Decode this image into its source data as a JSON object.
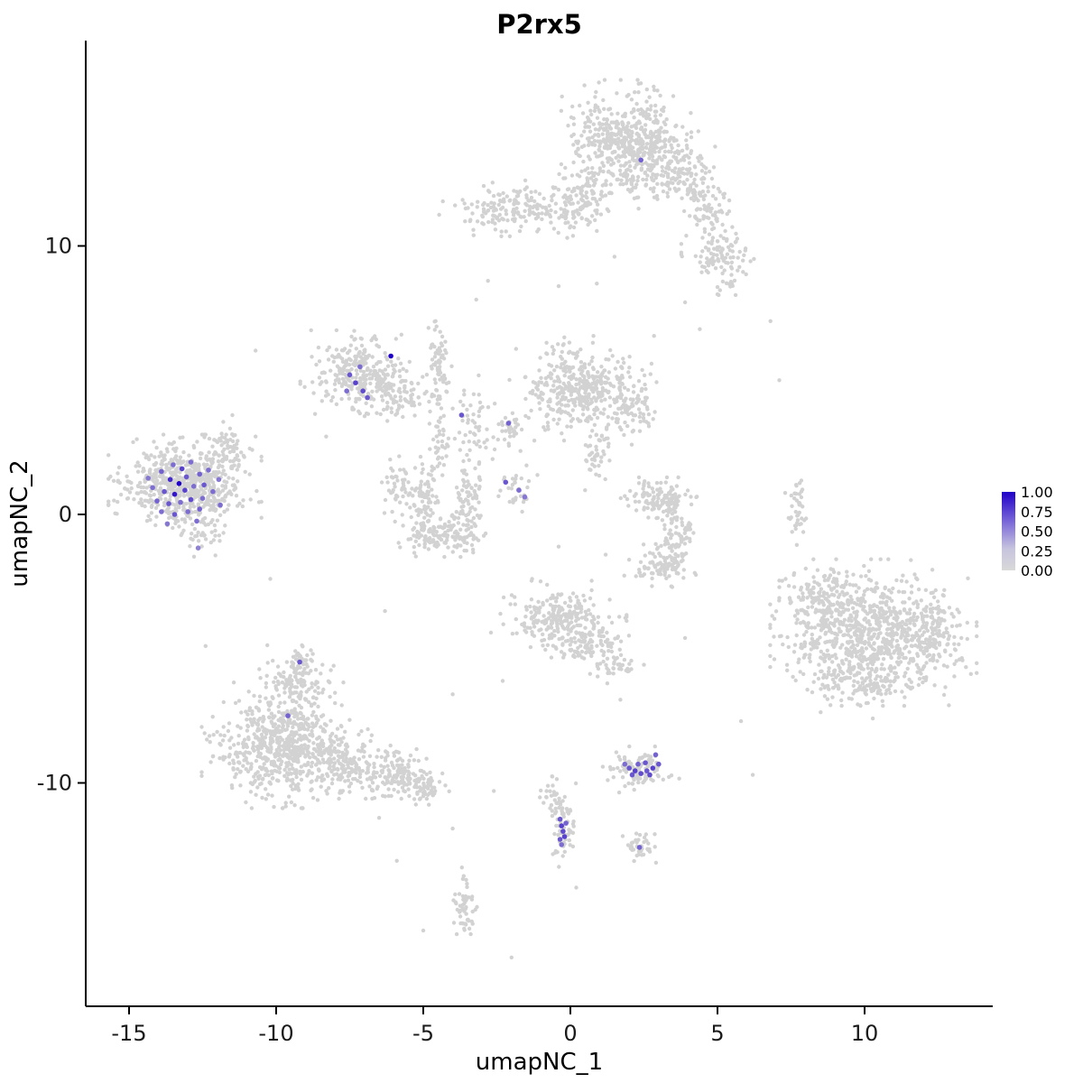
{
  "chart_data": {
    "type": "scatter",
    "title": "P2rx5",
    "xlabel": "umapNC_1",
    "ylabel": "umapNC_2",
    "xlim": [
      -16.5,
      14.4
    ],
    "ylim": [
      -18.3,
      17.6
    ],
    "x_ticks": [
      -15,
      -10,
      -5,
      0,
      5,
      10
    ],
    "y_ticks": [
      10,
      0,
      -10
    ],
    "grid": false,
    "legend": {
      "position": "right",
      "tick_labels": [
        "1.00",
        "0.75",
        "0.50",
        "0.25",
        "0.00"
      ],
      "low_color": "#d9d9d9",
      "high_color": "#2000c8",
      "mid_color": "#7a68d8"
    },
    "point_color_zero": "#d2d2d2",
    "seed": 7,
    "clusters_format": [
      "cx",
      "cy",
      "sx",
      "sy",
      "count"
    ],
    "clusters": [
      [
        1.9,
        14.1,
        0.85,
        0.8,
        420
      ],
      [
        2.9,
        13.3,
        0.6,
        0.6,
        150
      ],
      [
        1.6,
        12.5,
        1.0,
        0.45,
        90
      ],
      [
        4.2,
        12.4,
        0.4,
        0.5,
        70
      ],
      [
        4.7,
        11.2,
        0.35,
        0.45,
        50
      ],
      [
        5.2,
        9.6,
        0.55,
        0.55,
        110
      ],
      [
        -1.6,
        11.4,
        1.1,
        0.4,
        200
      ],
      [
        0.3,
        11.6,
        0.45,
        0.5,
        70
      ],
      [
        -7.1,
        5.3,
        0.8,
        0.6,
        280
      ],
      [
        -5.9,
        4.4,
        0.5,
        0.4,
        80
      ],
      [
        -4.5,
        5.4,
        0.18,
        1.1,
        80
      ],
      [
        -3.3,
        3.1,
        0.3,
        0.8,
        55
      ],
      [
        -4.4,
        2.4,
        0.15,
        0.5,
        30
      ],
      [
        0.4,
        4.7,
        0.95,
        0.75,
        400
      ],
      [
        2.1,
        3.9,
        0.4,
        0.5,
        70
      ],
      [
        0.9,
        2.5,
        0.25,
        0.6,
        45
      ],
      [
        -2.1,
        3.1,
        0.2,
        0.4,
        35
      ],
      [
        -1.9,
        1.0,
        0.3,
        0.35,
        30
      ],
      [
        -5.0,
        0.6,
        0.28,
        0.8,
        90
      ],
      [
        -4.4,
        -0.75,
        0.6,
        0.32,
        130
      ],
      [
        -3.5,
        0.4,
        0.25,
        0.7,
        80
      ],
      [
        -5.9,
        1.1,
        0.25,
        0.5,
        40
      ],
      [
        -13.1,
        1.1,
        1.0,
        0.72,
        650
      ],
      [
        -11.6,
        2.3,
        0.3,
        0.55,
        60
      ],
      [
        -12.4,
        -0.9,
        0.4,
        0.3,
        25
      ],
      [
        3.0,
        0.6,
        0.55,
        0.3,
        100
      ],
      [
        3.6,
        -0.7,
        0.3,
        0.8,
        120
      ],
      [
        3.0,
        -1.9,
        0.45,
        0.3,
        70
      ],
      [
        7.7,
        0.2,
        0.12,
        0.6,
        40
      ],
      [
        10.3,
        -4.4,
        1.35,
        1.05,
        800
      ],
      [
        8.4,
        -3.3,
        0.5,
        0.6,
        120
      ],
      [
        12.3,
        -4.3,
        0.5,
        0.6,
        120
      ],
      [
        10.0,
        -6.3,
        0.8,
        0.5,
        120
      ],
      [
        -0.3,
        -3.9,
        0.85,
        0.55,
        260
      ],
      [
        0.8,
        -4.9,
        0.5,
        0.4,
        80
      ],
      [
        1.6,
        -5.7,
        0.3,
        0.25,
        30
      ],
      [
        -9.8,
        -8.6,
        1.05,
        0.9,
        650
      ],
      [
        -7.4,
        -9.3,
        0.85,
        0.5,
        180
      ],
      [
        -5.8,
        -9.8,
        0.55,
        0.4,
        110
      ],
      [
        -4.9,
        -10.2,
        0.3,
        0.25,
        40
      ],
      [
        -9.3,
        -6.3,
        0.5,
        0.55,
        130
      ],
      [
        -9.15,
        -5.5,
        0.2,
        0.25,
        30
      ],
      [
        2.4,
        -9.5,
        0.5,
        0.33,
        100
      ],
      [
        -0.25,
        -11.6,
        0.18,
        0.7,
        60
      ],
      [
        -0.6,
        -10.4,
        0.18,
        0.4,
        25
      ],
      [
        2.3,
        -12.4,
        0.28,
        0.22,
        40
      ],
      [
        -3.6,
        -14.6,
        0.18,
        0.65,
        55
      ]
    ],
    "sparse_points": [
      [
        -10.7,
        2.9
      ],
      [
        -3.2,
        8.0
      ],
      [
        6.8,
        7.2
      ],
      [
        -0.4,
        8.5
      ],
      [
        0.9,
        8.6
      ],
      [
        3.9,
        7.9
      ],
      [
        5.0,
        8.2
      ],
      [
        7.3,
        0.8
      ],
      [
        -10.7,
        6.1
      ],
      [
        -10.2,
        -2.4
      ],
      [
        -12.4,
        -4.9
      ],
      [
        -5.9,
        -12.9
      ],
      [
        -5.0,
        -15.5
      ],
      [
        -2.0,
        -16.5
      ],
      [
        0.2,
        -13.9
      ],
      [
        1.7,
        -6.9
      ],
      [
        2.5,
        -5.6
      ],
      [
        5.8,
        -7.7
      ],
      [
        6.2,
        -9.7
      ],
      [
        7.1,
        5.0
      ],
      [
        -0.4,
        -1.2
      ],
      [
        -1.3,
        -2.4
      ],
      [
        3.9,
        -4.6
      ],
      [
        -2.6,
        -10.3
      ],
      [
        -4.0,
        -11.7
      ],
      [
        -6.5,
        -11.3
      ],
      [
        -2.7,
        -4.4
      ],
      [
        -4.0,
        -6.7
      ],
      [
        -2.3,
        -6.2
      ],
      [
        -2.8,
        8.7
      ],
      [
        1.5,
        9.6
      ],
      [
        4.4,
        6.9
      ],
      [
        -8.3,
        2.9
      ],
      [
        -6.3,
        -3.6
      ],
      [
        0.5,
        0.9
      ],
      [
        1.2,
        -1.5
      ]
    ],
    "expressing_format": [
      "x",
      "y",
      "value"
    ],
    "expressing_points": [
      [
        -13.9,
        1.6,
        0.55
      ],
      [
        -13.5,
        1.85,
        0.5
      ],
      [
        -13.2,
        1.7,
        0.7
      ],
      [
        -12.9,
        1.95,
        0.5
      ],
      [
        -13.6,
        1.3,
        0.8
      ],
      [
        -13.3,
        1.15,
        1.0
      ],
      [
        -13.05,
        1.4,
        0.6
      ],
      [
        -12.6,
        1.5,
        0.55
      ],
      [
        -12.3,
        1.65,
        0.5
      ],
      [
        -14.2,
        1.0,
        0.5
      ],
      [
        -13.8,
        0.85,
        0.6
      ],
      [
        -13.45,
        0.75,
        0.9
      ],
      [
        -13.1,
        0.9,
        0.7
      ],
      [
        -12.8,
        1.05,
        0.5
      ],
      [
        -12.45,
        1.1,
        0.6
      ],
      [
        -14.05,
        0.5,
        0.55
      ],
      [
        -13.65,
        0.4,
        0.6
      ],
      [
        -13.25,
        0.45,
        0.5
      ],
      [
        -12.9,
        0.55,
        0.65
      ],
      [
        -12.5,
        0.6,
        0.5
      ],
      [
        -13.9,
        0.1,
        0.5
      ],
      [
        -13.45,
        0.0,
        0.6
      ],
      [
        -13.0,
        0.1,
        0.5
      ],
      [
        -12.6,
        0.2,
        0.55
      ],
      [
        -14.35,
        1.35,
        0.45
      ],
      [
        -12.15,
        0.85,
        0.5
      ],
      [
        -11.95,
        1.3,
        0.45
      ],
      [
        -11.9,
        0.35,
        0.5
      ],
      [
        -12.7,
        -0.25,
        0.5
      ],
      [
        -13.7,
        -0.35,
        0.45
      ],
      [
        -12.65,
        -1.25,
        0.4
      ],
      [
        -7.5,
        5.2,
        0.6
      ],
      [
        -7.3,
        4.9,
        0.7
      ],
      [
        -7.05,
        4.6,
        0.65
      ],
      [
        -6.9,
        4.35,
        0.6
      ],
      [
        -7.6,
        4.6,
        0.5
      ],
      [
        -7.15,
        5.5,
        0.5
      ],
      [
        -6.1,
        5.9,
        1.0
      ],
      [
        -3.7,
        3.7,
        0.6
      ],
      [
        -2.1,
        3.4,
        0.55
      ],
      [
        -2.2,
        1.2,
        0.6
      ],
      [
        -1.75,
        0.9,
        0.5
      ],
      [
        -1.55,
        0.65,
        0.45
      ],
      [
        2.4,
        13.2,
        0.55
      ],
      [
        -9.2,
        -5.5,
        0.6
      ],
      [
        -9.6,
        -7.5,
        0.55
      ],
      [
        2.0,
        -9.45,
        0.6
      ],
      [
        2.2,
        -9.55,
        0.7
      ],
      [
        2.4,
        -9.65,
        0.65
      ],
      [
        2.6,
        -9.55,
        0.6
      ],
      [
        2.8,
        -9.45,
        0.7
      ],
      [
        2.3,
        -9.3,
        0.55
      ],
      [
        2.55,
        -9.25,
        0.6
      ],
      [
        2.1,
        -9.7,
        0.6
      ],
      [
        2.7,
        -9.7,
        0.65
      ],
      [
        3.0,
        -9.3,
        0.6
      ],
      [
        1.85,
        -9.3,
        0.5
      ],
      [
        2.9,
        -8.95,
        0.55
      ],
      [
        -0.35,
        -11.35,
        0.6
      ],
      [
        -0.3,
        -11.6,
        0.7
      ],
      [
        -0.25,
        -11.8,
        0.65
      ],
      [
        -0.2,
        -12.0,
        0.7
      ],
      [
        -0.35,
        -12.1,
        0.6
      ],
      [
        -0.15,
        -11.5,
        0.55
      ],
      [
        -0.3,
        -12.3,
        0.5
      ],
      [
        2.35,
        -12.4,
        0.55
      ]
    ]
  }
}
